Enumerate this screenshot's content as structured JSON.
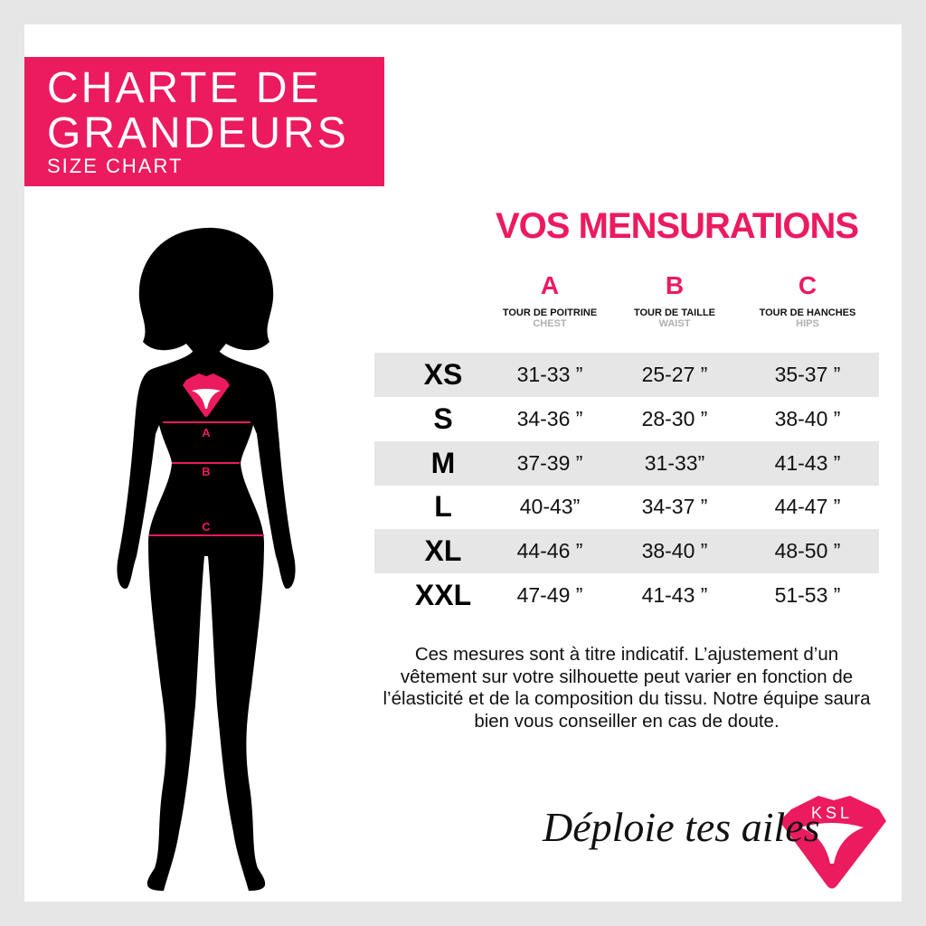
{
  "title": {
    "line1": "CHARTE DE",
    "line2": "GRANDEURS",
    "subtitle": "SIZE CHART"
  },
  "heading": "VOS MENSURATIONS",
  "columns": [
    {
      "letter": "A",
      "name": "TOUR DE POITRINE",
      "english": "CHEST"
    },
    {
      "letter": "B",
      "name": "TOUR DE TAILLE",
      "english": "WAIST"
    },
    {
      "letter": "C",
      "name": "TOUR DE HANCHES",
      "english": "HIPS"
    }
  ],
  "rows": [
    {
      "size": "XS",
      "a": "31-33 ”",
      "b": "25-27 ”",
      "c": "35-37 ”"
    },
    {
      "size": "S",
      "a": "34-36 ”",
      "b": "28-30 ”",
      "c": "38-40 ”"
    },
    {
      "size": "M",
      "a": "37-39 ”",
      "b": "31-33”",
      "c": "41-43 ”"
    },
    {
      "size": "L",
      "a": "40-43”",
      "b": "34-37 ”",
      "c": "44-47 ”"
    },
    {
      "size": "XL",
      "a": "44-46 ”",
      "b": "38-40 ”",
      "c": "48-50 ”"
    },
    {
      "size": "XXL",
      "a": "47-49 ”",
      "b": "41-43 ”",
      "c": "51-53 ”"
    }
  ],
  "note": "Ces mesures sont à titre indicatif. L’ajustement d’un vêtement sur votre silhouette peut varier en fonction de l’élasticité et de la composition du tissu. Notre équipe saura bien vous conseiller en cas de doute.",
  "figure_labels": {
    "a": "A",
    "b": "B",
    "c": "C"
  },
  "slogan": "Déploie tes ailes",
  "logo_text": "KSL",
  "colors": {
    "accent": "#ec1a5f",
    "row_shade": "#e6e6e6",
    "frame": "#e6e6e6"
  }
}
